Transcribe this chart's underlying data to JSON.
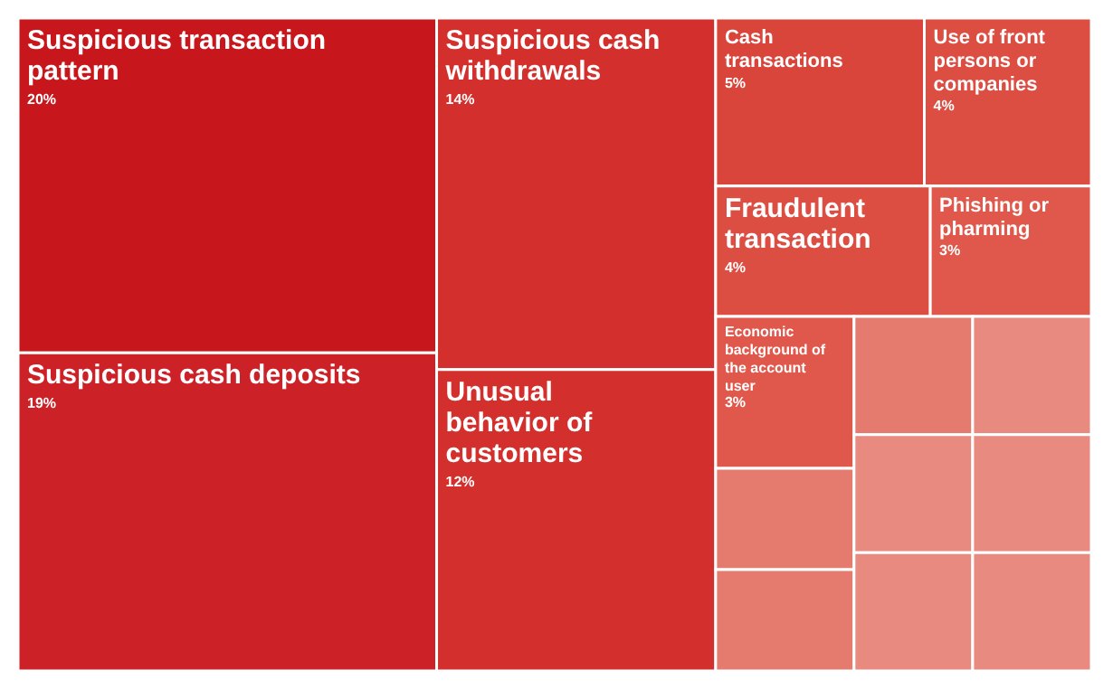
{
  "chart_data": {
    "type": "other",
    "categories": [
      "Suspicious transaction pattern",
      "Suspicious cash deposits",
      "Suspicious cash withdrawals",
      "Unusual behavior of customers",
      "Cash transactions",
      "Use of front persons or companies",
      "Fraudulent transaction",
      "Phishing or pharming",
      "Economic background of the account user",
      null,
      null,
      null,
      null,
      null,
      null,
      null,
      null
    ],
    "values": [
      20,
      19,
      14,
      12,
      5,
      4,
      4,
      3,
      3,
      null,
      null,
      null,
      null,
      null,
      null,
      null,
      null
    ],
    "value_labels": [
      "20%",
      "19%",
      "14%",
      "12%",
      "5%",
      "4%",
      "4%",
      "3%",
      "3%",
      null,
      null,
      null,
      null,
      null,
      null,
      null,
      null
    ],
    "colors": [
      "#c8161d",
      "#cc2126",
      "#d32f2c",
      "#d32f2c",
      "#d9443b",
      "#dc4d42",
      "#dc4d42",
      "#e0584c",
      "#e0584c",
      "#e57a6e",
      "#e57a6e",
      "#e57a6e",
      "#e88a80",
      "#e88a80",
      "#e88a80",
      "#e88a80",
      "#e88a80"
    ]
  }
}
